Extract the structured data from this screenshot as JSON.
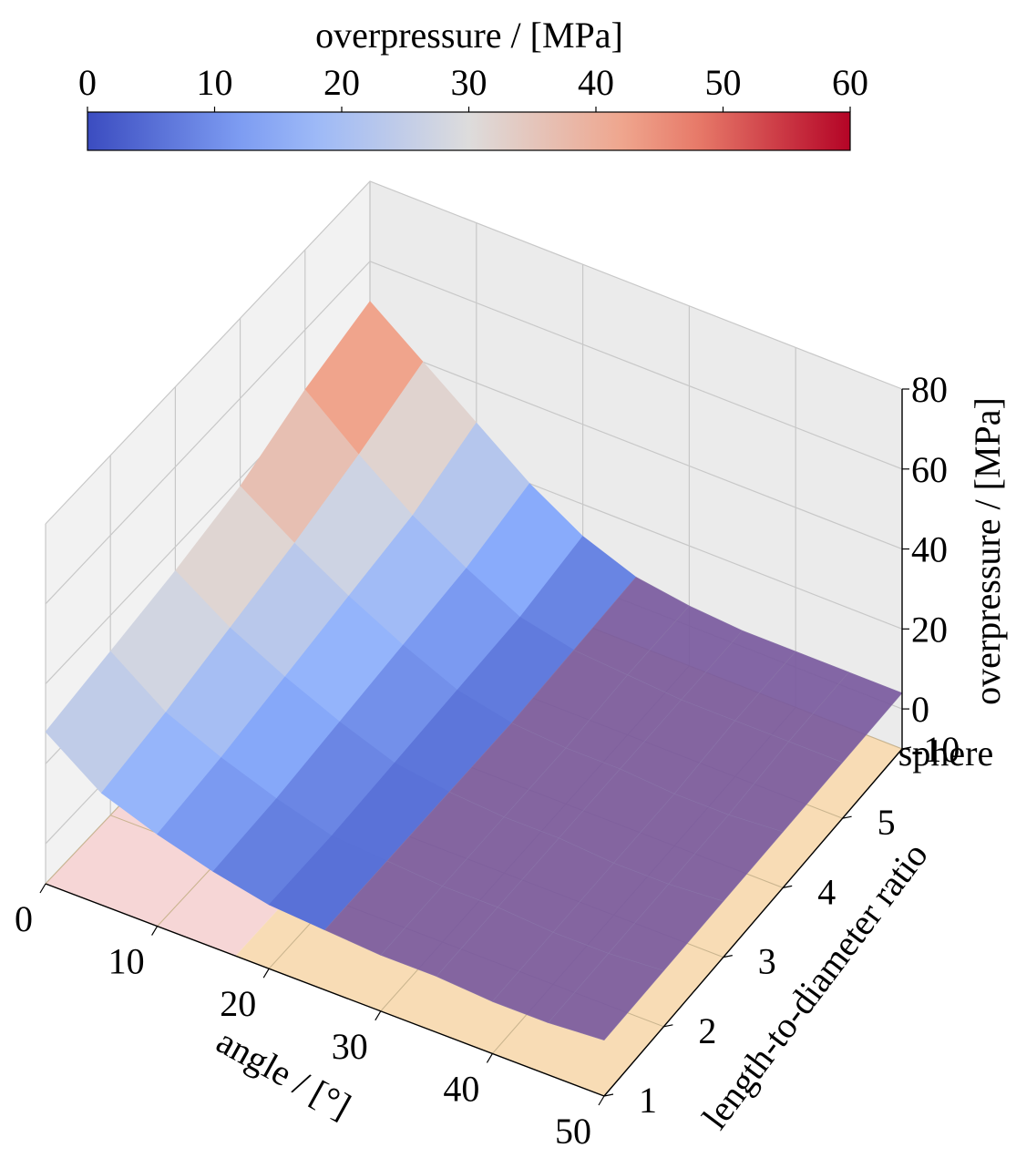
{
  "chart_data": {
    "type": "surface3d",
    "title": "",
    "colorbar": {
      "label": "overpressure / [MPa]",
      "colormap": "coolwarm",
      "range": [
        0,
        60
      ],
      "ticks": [
        "0",
        "10",
        "20",
        "30",
        "40",
        "50",
        "60"
      ],
      "colors": {
        "low": "#3b4cc0",
        "mid": "#dddcdc",
        "high": "#b40426"
      }
    },
    "xlabel": "angle / [°]",
    "ylabel": "length-to-diameter ratio",
    "zlabel": "overpressure / [MPa]",
    "xlim": [
      0,
      50
    ],
    "zlim": [
      -10,
      80
    ],
    "xticks": [
      "0",
      "10",
      "20",
      "30",
      "40",
      "50"
    ],
    "yticks": [
      "1",
      "2",
      "3",
      "4",
      "5",
      "sphere"
    ],
    "zticks": [
      "-10",
      "0",
      "20",
      "40",
      "60",
      "80"
    ],
    "angle": [
      0,
      5,
      10,
      15,
      20,
      25,
      30,
      35,
      40,
      45,
      50
    ],
    "length_to_diameter": [
      "1",
      "2",
      "3",
      "4",
      "5",
      "sphere"
    ],
    "overpressure": [
      [
        28,
        18,
        13,
        9,
        6,
        5,
        4,
        4,
        3,
        3,
        4
      ],
      [
        31,
        21,
        15,
        10,
        6,
        5,
        4,
        4,
        3,
        3,
        4
      ],
      [
        34,
        25,
        18,
        12,
        7,
        5,
        4,
        4,
        3,
        3,
        4
      ],
      [
        38,
        29,
        21,
        14,
        8,
        5,
        4,
        4,
        3,
        3,
        4
      ],
      [
        45,
        34,
        24,
        16,
        9,
        6,
        5,
        4,
        4,
        4,
        4
      ],
      [
        50,
        40,
        30,
        20,
        12,
        7,
        5,
        4,
        4,
        4,
        4
      ]
    ],
    "floor_regions": [
      {
        "angle_range": [
          0,
          17
        ],
        "color": "#f5cfcf"
      },
      {
        "angle_range": [
          17,
          50
        ],
        "color": "#f7d6a8"
      }
    ],
    "overlay": {
      "angle_range": [
        25,
        50
      ],
      "color": "#7a5a9e"
    },
    "grid": true,
    "legend": "none"
  }
}
